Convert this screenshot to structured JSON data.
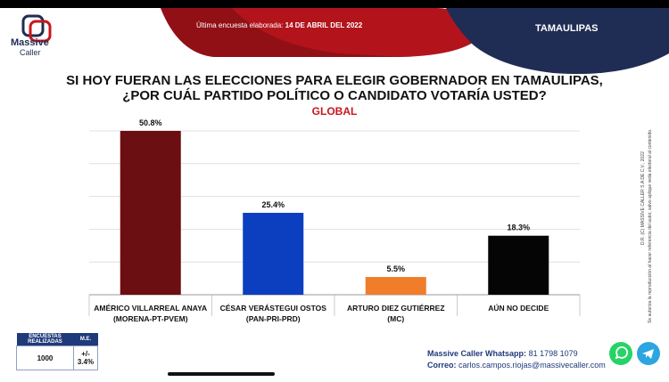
{
  "brand": {
    "line1": "Massive",
    "line2": "Caller"
  },
  "header": {
    "survey_label": "Última encuesta elaborada:",
    "survey_date": "14 DE ABRIL DEL 2022",
    "region": "TAMAULIPAS",
    "colors": {
      "red": "#b3141c",
      "navy": "#1f2d55"
    }
  },
  "question": {
    "line1": "SI HOY FUERAN LAS ELECCIONES PARA ELEGIR GOBERNADOR EN TAMAULIPAS,",
    "line2": "¿POR CUÁL PARTIDO POLÍTICO O CANDIDATO VOTARÍA USTED?",
    "subtitle": "GLOBAL"
  },
  "chart_data": {
    "type": "bar",
    "categories": [
      [
        "AMÉRICO VILLARREAL ANAYA",
        "(MORENA-PT-PVEM)"
      ],
      [
        "CÉSAR VERÁSTEGUI OSTOS",
        "(PAN-PRI-PRD)"
      ],
      [
        "ARTURO DIEZ GUTIÉRREZ",
        "(MC)"
      ],
      [
        "AÚN NO DECIDE"
      ]
    ],
    "values": [
      50.8,
      25.4,
      5.5,
      18.3
    ],
    "value_labels": [
      "50.8%",
      "25.4%",
      "5.5%",
      "18.3%"
    ],
    "colors": [
      "#6b0f12",
      "#0b3fbf",
      "#f07d2a",
      "#050505"
    ],
    "ylim": [
      0,
      50.8
    ],
    "grid": true
  },
  "legal_note": {
    "line1": "D.R. (C) MASSIVE CALLER S.A DE C.V., 2022",
    "line2": "Se autoriza la reproducción al hacer referencia del autor, salvo aplique veda electoral al contenido."
  },
  "sample": {
    "headers": [
      "ENCUESTAS REALIZADAS",
      "M.E."
    ],
    "values": [
      "1000",
      "+/- 3.4%"
    ]
  },
  "contact": {
    "whatsapp_label": "Massive Caller Whatsapp:",
    "whatsapp_number": "81 1798 1079",
    "email_label": "Correo:",
    "email": "carlos.campos.riojas@massivecaller.com"
  },
  "icons": [
    "whatsapp-icon",
    "telegram-icon",
    "massive-caller-logo-icon"
  ]
}
